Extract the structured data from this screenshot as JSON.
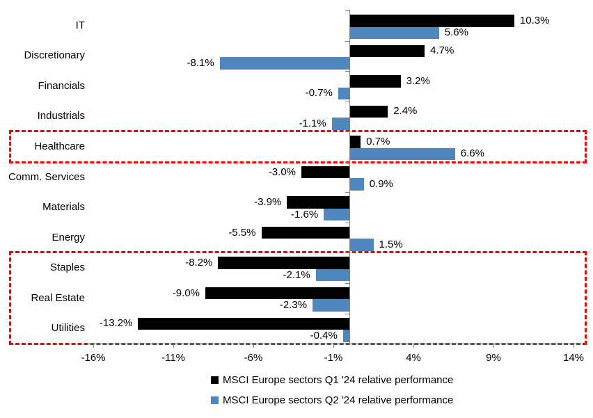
{
  "chart_data": {
    "type": "bar",
    "orientation": "horizontal",
    "title": "",
    "categories": [
      "IT",
      "Discretionary",
      "Financials",
      "Industrials",
      "Healthcare",
      "Comm. Services",
      "Materials",
      "Energy",
      "Staples",
      "Real Estate",
      "Utilities"
    ],
    "series": [
      {
        "name": "MSCI Europe sectors Q1 '24 relative performance",
        "color": "#000000",
        "values": [
          10.3,
          4.7,
          3.2,
          2.4,
          0.7,
          -3.0,
          -3.9,
          -5.5,
          -8.2,
          -9.0,
          -13.2
        ]
      },
      {
        "name": "MSCI Europe sectors Q2 '24 relative performance",
        "color": "#4e86bd",
        "values": [
          5.6,
          -8.1,
          -0.7,
          -1.1,
          6.6,
          0.9,
          -1.6,
          1.5,
          -2.1,
          -2.3,
          -0.4
        ]
      }
    ],
    "value_axis": {
      "min": -16,
      "max": 14,
      "ticks": [
        -16,
        -11,
        -6,
        -1,
        4,
        9,
        14
      ],
      "tick_suffix": "%"
    },
    "data_labels": true,
    "grid": false,
    "axis_color": "#808080",
    "legend_position": "bottom",
    "legend": [
      "MSCI Europe sectors Q1 '24 relative performance",
      "MSCI Europe sectors Q2 '24 relative performance"
    ],
    "highlight_boxes": [
      {
        "from_category": "Healthcare",
        "to_category": "Healthcare",
        "color": "#fe0000",
        "style": "dashed"
      },
      {
        "from_category": "Staples",
        "to_category": "Utilities",
        "color": "#fe0000",
        "style": "dashed"
      }
    ]
  }
}
